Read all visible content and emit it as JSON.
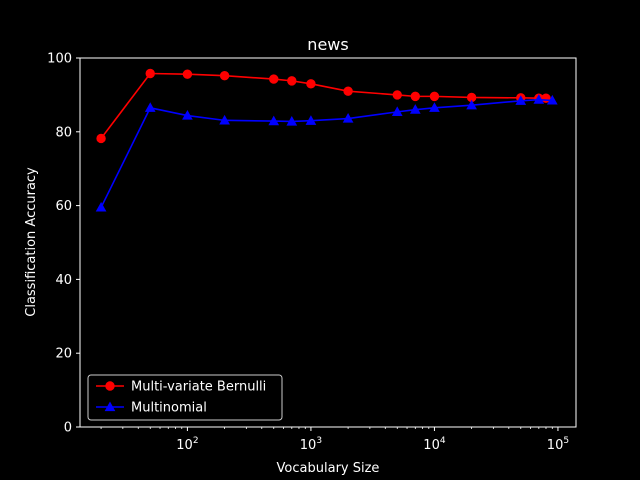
{
  "chart_data": {
    "type": "line",
    "title": "news",
    "xlabel": "Vocabulary Size",
    "ylabel": "Classification Accuracy",
    "xscale": "log",
    "xlim": [
      13.5,
      140000
    ],
    "ylim": [
      0,
      100
    ],
    "yticks": [
      0,
      20,
      40,
      60,
      80,
      100
    ],
    "xticks": [
      {
        "value": 100,
        "base": "10",
        "exp": "2"
      },
      {
        "value": 1000,
        "base": "10",
        "exp": "3"
      },
      {
        "value": 10000,
        "base": "10",
        "exp": "4"
      },
      {
        "value": 100000,
        "base": "10",
        "exp": "5"
      }
    ],
    "grid": false,
    "legend_position": "lower-left",
    "background": "#000000",
    "foreground": "#ffffff",
    "series": [
      {
        "name": "Multi-variate Bernulli",
        "color": "#ff0000",
        "marker": "circle",
        "x": [
          20,
          50,
          100,
          200,
          500,
          700,
          1000,
          2000,
          5000,
          7000,
          10000,
          20000,
          50000,
          70000,
          80000
        ],
        "y": [
          78.2,
          95.8,
          95.6,
          95.2,
          94.3,
          93.8,
          93.0,
          91.0,
          90.0,
          89.6,
          89.6,
          89.3,
          89.2,
          89.1,
          89.1
        ]
      },
      {
        "name": "Multinomial",
        "color": "#0000ff",
        "marker": "triangle",
        "x": [
          20,
          50,
          100,
          200,
          500,
          700,
          1000,
          2000,
          5000,
          7000,
          10000,
          20000,
          50000,
          70000,
          90000
        ],
        "y": [
          59.5,
          86.5,
          84.4,
          83.1,
          82.9,
          82.8,
          83.0,
          83.6,
          85.4,
          86.0,
          86.5,
          87.2,
          88.4,
          88.7,
          88.5
        ]
      }
    ]
  }
}
